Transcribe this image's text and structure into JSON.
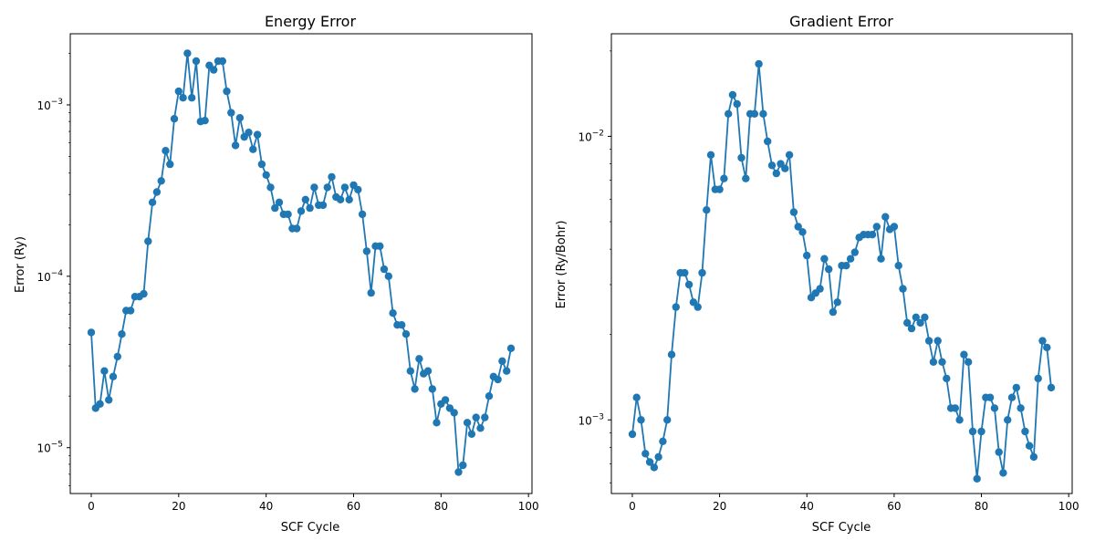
{
  "chart_data": [
    {
      "type": "line",
      "title": "Energy Error",
      "xlabel": "SCF Cycle",
      "ylabel": "Error (Ry)",
      "xlim": [
        -4.8,
        100.8
      ],
      "ylim": [
        5.4e-06,
        0.0026
      ],
      "yscale": "log",
      "grid": false,
      "x_ticks": [
        0,
        20,
        40,
        60,
        80,
        100
      ],
      "y_ticks": [
        {
          "value": 1e-05,
          "mant": "10",
          "exp": "−5"
        },
        {
          "value": 0.0001,
          "mant": "10",
          "exp": "−4"
        },
        {
          "value": 0.001,
          "mant": "10",
          "exp": "−3"
        }
      ],
      "x": [
        0,
        1,
        2,
        3,
        4,
        5,
        6,
        7,
        8,
        9,
        10,
        11,
        12,
        13,
        14,
        15,
        16,
        17,
        18,
        19,
        20,
        21,
        22,
        23,
        24,
        25,
        26,
        27,
        28,
        29,
        30,
        31,
        32,
        33,
        34,
        35,
        36,
        37,
        38,
        39,
        40,
        41,
        42,
        43,
        44,
        45,
        46,
        47,
        48,
        49,
        50,
        51,
        52,
        53,
        54,
        55,
        56,
        57,
        58,
        59,
        60,
        61,
        62,
        63,
        64,
        65,
        66,
        67,
        68,
        69,
        70,
        71,
        72,
        73,
        74,
        75,
        76,
        77,
        78,
        79,
        80,
        81,
        82,
        83,
        84,
        85,
        86,
        87,
        88,
        89,
        90,
        91,
        92,
        93,
        94,
        95,
        96
      ],
      "y": [
        4.7e-05,
        1.7e-05,
        1.8e-05,
        2.8e-05,
        1.9e-05,
        2.6e-05,
        3.4e-05,
        4.6e-05,
        6.3e-05,
        6.3e-05,
        7.6e-05,
        7.6e-05,
        7.9e-05,
        0.00016,
        0.00027,
        0.00031,
        0.00036,
        0.00054,
        0.00045,
        0.00083,
        0.0012,
        0.0011,
        0.002,
        0.0011,
        0.0018,
        0.0008,
        0.00081,
        0.0017,
        0.0016,
        0.0018,
        0.0018,
        0.0012,
        0.0009,
        0.00058,
        0.00084,
        0.00065,
        0.00069,
        0.00055,
        0.00067,
        0.00045,
        0.00039,
        0.00033,
        0.00025,
        0.00027,
        0.00023,
        0.00023,
        0.00019,
        0.00019,
        0.00024,
        0.00028,
        0.00025,
        0.00033,
        0.00026,
        0.00026,
        0.00033,
        0.00038,
        0.00029,
        0.00028,
        0.00033,
        0.00028,
        0.00034,
        0.00032,
        0.00023,
        0.00014,
        8e-05,
        0.00015,
        0.00015,
        0.00011,
        0.0001,
        6.1e-05,
        5.2e-05,
        5.2e-05,
        4.6e-05,
        2.8e-05,
        2.2e-05,
        3.3e-05,
        2.7e-05,
        2.8e-05,
        2.2e-05,
        1.4e-05,
        1.8e-05,
        1.9e-05,
        1.7e-05,
        1.6e-05,
        7.2e-06,
        7.9e-06,
        1.4e-05,
        1.2e-05,
        1.5e-05,
        1.3e-05,
        1.5e-05,
        2e-05,
        2.6e-05,
        2.5e-05,
        3.2e-05,
        2.8e-05,
        3.8e-05
      ]
    },
    {
      "type": "line",
      "title": "Gradient Error",
      "xlabel": "SCF Cycle",
      "ylabel": "Error (Ry/Bohr)",
      "xlim": [
        -4.8,
        100.8
      ],
      "ylim": [
        0.00055,
        0.023
      ],
      "yscale": "log",
      "grid": false,
      "x_ticks": [
        0,
        20,
        40,
        60,
        80,
        100
      ],
      "y_ticks": [
        {
          "value": 0.001,
          "mant": "10",
          "exp": "−3"
        },
        {
          "value": 0.01,
          "mant": "10",
          "exp": "−2"
        }
      ],
      "x": [
        0,
        1,
        2,
        3,
        4,
        5,
        6,
        7,
        8,
        9,
        10,
        11,
        12,
        13,
        14,
        15,
        16,
        17,
        18,
        19,
        20,
        21,
        22,
        23,
        24,
        25,
        26,
        27,
        28,
        29,
        30,
        31,
        32,
        33,
        34,
        35,
        36,
        37,
        38,
        39,
        40,
        41,
        42,
        43,
        44,
        45,
        46,
        47,
        48,
        49,
        50,
        51,
        52,
        53,
        54,
        55,
        56,
        57,
        58,
        59,
        60,
        61,
        62,
        63,
        64,
        65,
        66,
        67,
        68,
        69,
        70,
        71,
        72,
        73,
        74,
        75,
        76,
        77,
        78,
        79,
        80,
        81,
        82,
        83,
        84,
        85,
        86,
        87,
        88,
        89,
        90,
        91,
        92,
        93,
        94,
        95,
        96
      ],
      "y": [
        0.00089,
        0.0012,
        0.001,
        0.00076,
        0.00071,
        0.00068,
        0.00074,
        0.00084,
        0.001,
        0.0017,
        0.0025,
        0.0033,
        0.0033,
        0.003,
        0.0026,
        0.0025,
        0.0033,
        0.0055,
        0.0086,
        0.0065,
        0.0065,
        0.0071,
        0.012,
        0.014,
        0.013,
        0.0084,
        0.0071,
        0.012,
        0.012,
        0.018,
        0.012,
        0.0096,
        0.0079,
        0.0074,
        0.008,
        0.0077,
        0.0086,
        0.0054,
        0.0048,
        0.0046,
        0.0038,
        0.0027,
        0.0028,
        0.0029,
        0.0037,
        0.0034,
        0.0024,
        0.0026,
        0.0035,
        0.0035,
        0.0037,
        0.0039,
        0.0044,
        0.0045,
        0.0045,
        0.0045,
        0.0048,
        0.0037,
        0.0052,
        0.0047,
        0.0048,
        0.0035,
        0.0029,
        0.0022,
        0.0021,
        0.0023,
        0.0022,
        0.0023,
        0.0019,
        0.0016,
        0.0019,
        0.0016,
        0.0014,
        0.0011,
        0.0011,
        0.001,
        0.0017,
        0.0016,
        0.00091,
        0.00062,
        0.00091,
        0.0012,
        0.0012,
        0.0011,
        0.00077,
        0.00065,
        0.001,
        0.0012,
        0.0013,
        0.0011,
        0.00091,
        0.00081,
        0.00074,
        0.0014,
        0.0019,
        0.0018,
        0.0013
      ]
    }
  ]
}
